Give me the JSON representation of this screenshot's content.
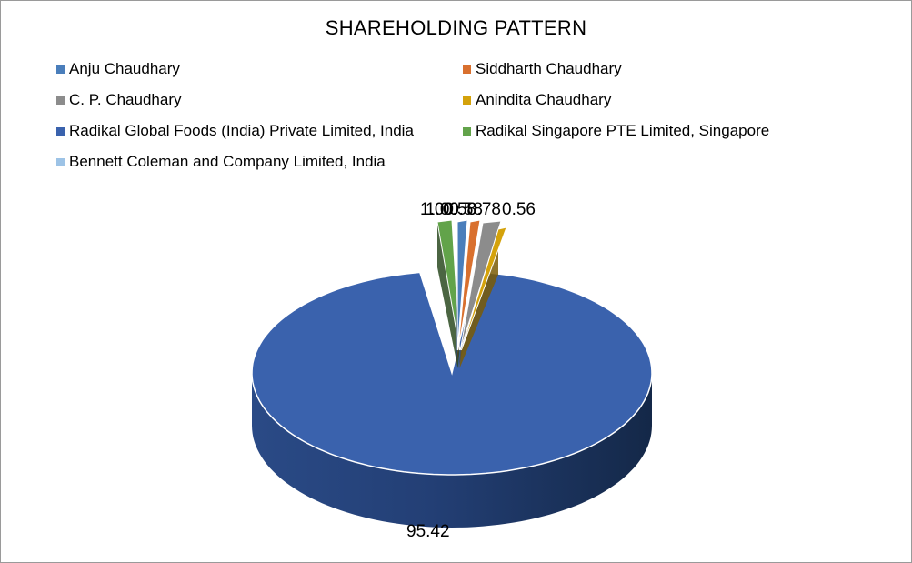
{
  "chart_data": {
    "type": "pie",
    "title": "SHAREHOLDING PATTERN",
    "slices": [
      {
        "label": "Anju Chaudhary",
        "value": 0.58,
        "color": "#4a7ebb",
        "data_label": "0.58"
      },
      {
        "label": "Siddharth Chaudhary",
        "value": 0.58,
        "color": "#d9702e",
        "data_label": "0.58"
      },
      {
        "label": "C. P. Chaudhary",
        "value": 0.78,
        "color": "#8c8c8c",
        "data_label": "0.78"
      },
      {
        "label": "Anindita Chaudhary",
        "value": 0.56,
        "color": "#d4a20b",
        "data_label": "0.56"
      },
      {
        "label": "Radikal Global Foods (India) Private Limited, India",
        "value": 95.42,
        "color": "#3a62ad",
        "data_label": "95.42"
      },
      {
        "label": "Radikal Singapore PTE Limited, Singapore",
        "value": 1.0,
        "color": "#62a34a",
        "data_label": "1.00"
      },
      {
        "label": "Bennett Coleman and Company Limited, India",
        "value": 1.0,
        "color": "#9dc3e6",
        "data_label": "1.00"
      }
    ],
    "style": "3d-exploded",
    "legend_position": "top"
  }
}
